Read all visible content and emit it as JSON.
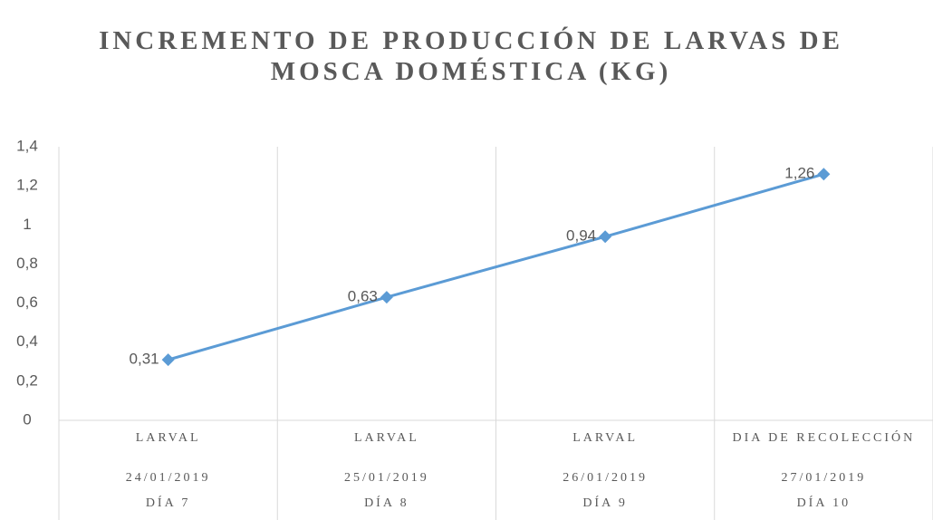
{
  "chart_data": {
    "type": "line",
    "title": "INCREMENTO DE PRODUCCIÓN DE LARVAS DE MOSCA DOMÉSTICA (KG)",
    "categories": [
      [
        "LARVAL",
        "24/01/2019",
        "DÍA 7"
      ],
      [
        "LARVAL",
        "25/01/2019",
        "DÍA 8"
      ],
      [
        "LARVAL",
        "26/01/2019",
        "DÍA 9"
      ],
      [
        "DIA DE RECOLECCIÓN",
        "27/01/2019",
        "DÍA 10"
      ]
    ],
    "series": [
      {
        "name": "Producción",
        "color": "#5b9bd5",
        "values": [
          0.31,
          0.63,
          0.94,
          1.26
        ],
        "value_labels": [
          "0,31",
          "0,63",
          "0,94",
          "1,26"
        ]
      }
    ],
    "ylim": [
      0,
      1.4
    ],
    "yticks": [
      0,
      {
        "value": 0.2,
        "label": "0,2"
      },
      {
        "value": 0.4,
        "label": "0,4"
      },
      {
        "value": 0.6,
        "label": "0,6"
      },
      {
        "value": 0.8,
        "label": "0,8"
      },
      1,
      {
        "value": 1.2,
        "label": "1,2"
      },
      {
        "value": 1.4,
        "label": "1,4"
      }
    ]
  }
}
